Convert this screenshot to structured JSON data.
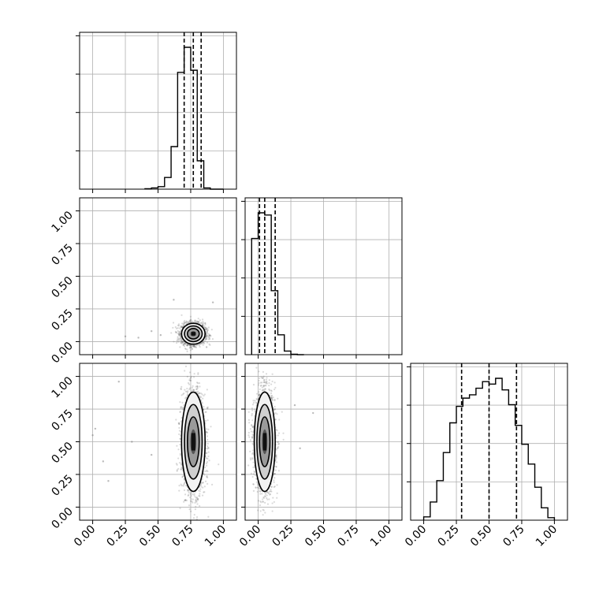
{
  "chart_data": {
    "type": "corner",
    "title": "",
    "parameters": [
      "",
      "",
      ""
    ],
    "axis_range": [
      -0.1,
      1.1
    ],
    "tick_values": [
      0.0,
      0.25,
      0.5,
      0.75,
      1.0
    ],
    "tick_labels": [
      "0.00",
      "0.25",
      "0.50",
      "0.75",
      "1.00"
    ],
    "grid": true,
    "colors": {
      "line": "#000000",
      "grid": "#b0b0b0",
      "points": "#555555"
    },
    "marginals": [
      {
        "param": 0,
        "bins": [
          0.4,
          0.45,
          0.5,
          0.55,
          0.6,
          0.65,
          0.7,
          0.75,
          0.8,
          0.85,
          0.9,
          0.95,
          1.0
        ],
        "counts": [
          1,
          3,
          6,
          28,
          102,
          280,
          340,
          285,
          68,
          3,
          0,
          0
        ],
        "quantiles": [
          0.7,
          0.77,
          0.83
        ]
      },
      {
        "param": 1,
        "bins": [
          -0.05,
          0.0,
          0.05,
          0.1,
          0.15,
          0.2,
          0.25,
          0.3,
          0.35
        ],
        "counts": [
          258,
          315,
          310,
          142,
          44,
          8,
          1,
          0
        ],
        "quantiles": [
          0.01,
          0.05,
          0.13
        ]
      },
      {
        "param": 2,
        "bins": [
          0.0,
          0.05,
          0.1,
          0.15,
          0.2,
          0.25,
          0.3,
          0.35,
          0.4,
          0.45,
          0.5,
          0.55,
          0.6,
          0.65,
          0.7,
          0.75,
          0.8,
          0.85,
          0.9,
          0.95,
          1.0
        ],
        "counts": [
          4,
          22,
          48,
          82,
          118,
          138,
          148,
          152,
          160,
          168,
          165,
          172,
          158,
          140,
          115,
          92,
          68,
          40,
          15,
          3
        ],
        "quantiles": [
          0.29,
          0.5,
          0.71
        ]
      }
    ],
    "joint": [
      {
        "x_param": 0,
        "y_param": 1,
        "center": [
          0.77,
          0.06
        ],
        "spread": [
          0.045,
          0.04
        ],
        "outliers": [
          [
            0.25,
            0.04
          ],
          [
            0.35,
            0.03
          ],
          [
            0.45,
            0.08
          ],
          [
            0.52,
            0.05
          ],
          [
            0.62,
            0.32
          ],
          [
            0.92,
            0.3
          ]
        ]
      },
      {
        "x_param": 0,
        "y_param": 2,
        "center": [
          0.77,
          0.5
        ],
        "spread": [
          0.045,
          0.19
        ],
        "outliers": [
          [
            0.0,
            0.55
          ],
          [
            0.02,
            0.6
          ],
          [
            0.08,
            0.35
          ],
          [
            0.12,
            0.2
          ],
          [
            0.2,
            0.96
          ],
          [
            0.3,
            0.5
          ],
          [
            0.45,
            0.4
          ]
        ]
      },
      {
        "x_param": 1,
        "y_param": 2,
        "center": [
          0.05,
          0.5
        ],
        "spread": [
          0.04,
          0.19
        ],
        "outliers": [
          [
            0.32,
            0.45
          ],
          [
            0.28,
            0.78
          ],
          [
            0.42,
            0.72
          ]
        ]
      }
    ]
  }
}
